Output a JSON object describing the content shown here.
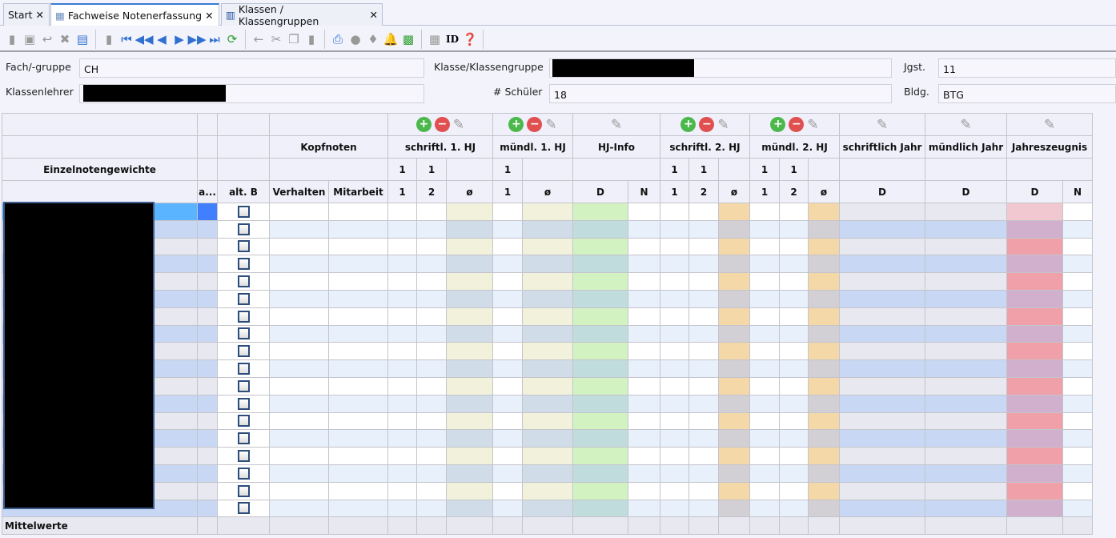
{
  "tabs": [
    {
      "label": "Start",
      "icon": "none"
    },
    {
      "label": "Fachweise Notenerfassung",
      "icon": "table-icon",
      "active": true
    },
    {
      "label": "Klassen / Klassengruppen",
      "icon": "class-icon"
    }
  ],
  "toolbar": {
    "icons": [
      "new-icon",
      "save-icon",
      "undo-icon",
      "delete-icon",
      "form-icon",
      "copy-record-icon",
      "first-icon",
      "prev-page-icon",
      "prev-icon",
      "next-icon",
      "next-page-icon",
      "last-icon",
      "refresh-icon",
      "back-icon",
      "cut-icon",
      "copy-icon",
      "paste-icon",
      "print-icon",
      "preview-icon",
      "hint-icon",
      "bell-icon",
      "excel-icon",
      "import-icon",
      "id-icon",
      "help-icon"
    ],
    "id_label": "ID"
  },
  "form": {
    "fach_label": "Fach/-gruppe",
    "fach_value": "CH",
    "klasse_label": "Klasse/Klassengruppe",
    "jgst_label": "Jgst.",
    "jgst_value": "11",
    "lehrer_label": "Klassenlehrer",
    "schueler_label": "# Schüler",
    "schueler_value": "18",
    "bldg_label": "Bldg.",
    "bldg_value": "BTG"
  },
  "grid": {
    "weights_label": "Einzelnotengewichte",
    "kopfnoten": "Kopfnoten",
    "groups": {
      "s1": "schriftl. 1. HJ",
      "m1": "mündl. 1. HJ",
      "hj": "HJ-Info",
      "s2": "schriftl. 2. HJ",
      "m2": "mündl. 2. HJ",
      "sj": "schriftlich Jahr",
      "mj": "mündlich Jahr",
      "jz": "Jahreszeugnis"
    },
    "weights": {
      "s1": [
        "1",
        "1"
      ],
      "m1": [
        "1"
      ],
      "s2": [
        "1",
        "1"
      ],
      "m2": [
        "1",
        "1"
      ]
    },
    "cols": {
      "a": "a...",
      "altb": "alt. B",
      "verhalten": "Verhalten",
      "mitarbeit": "Mitarbeit",
      "one": "1",
      "two": "2",
      "avg": "ø",
      "d": "D",
      "n": "N"
    },
    "footer": "Mittelwerte",
    "selected_row": 0,
    "rows": [
      {
        "alt_b": false
      },
      {
        "alt_b": false
      },
      {
        "alt_b": false
      },
      {
        "alt_b": false
      },
      {
        "alt_b": false
      },
      {
        "alt_b": false
      },
      {
        "alt_b": false
      },
      {
        "alt_b": false
      },
      {
        "alt_b": false
      },
      {
        "alt_b": false
      },
      {
        "alt_b": false
      },
      {
        "alt_b": false
      },
      {
        "alt_b": false
      },
      {
        "alt_b": false
      },
      {
        "alt_b": false
      },
      {
        "alt_b": false
      },
      {
        "alt_b": false
      },
      {
        "alt_b": false
      }
    ]
  },
  "colors": {
    "selected": "#5ab4ff",
    "accent": "#3a7bd5"
  }
}
